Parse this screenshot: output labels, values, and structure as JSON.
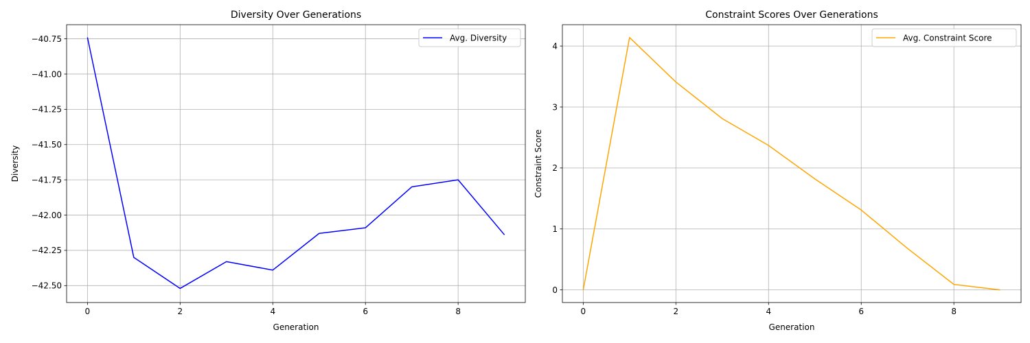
{
  "chart_data": [
    {
      "type": "line",
      "title": "Diversity Over Generations",
      "xlabel": "Generation",
      "ylabel": "Diversity",
      "xlim": [
        -0.45,
        9.45
      ],
      "ylim": [
        -42.62,
        -40.65
      ],
      "xticks": [
        0,
        2,
        4,
        6,
        8
      ],
      "yticks": [
        -42.5,
        -42.25,
        -42.0,
        -41.75,
        -41.5,
        -41.25,
        -41.0,
        -40.75
      ],
      "ytick_labels": [
        "−42.50",
        "−42.25",
        "−42.00",
        "−41.75",
        "−41.50",
        "−41.25",
        "−41.00",
        "−40.75"
      ],
      "grid": true,
      "legend_position": "upper right",
      "x": [
        0,
        1,
        2,
        3,
        4,
        5,
        6,
        7,
        8,
        9
      ],
      "series": [
        {
          "name": "Avg. Diversity",
          "color": "#0000ff",
          "values": [
            -40.74,
            -42.3,
            -42.52,
            -42.33,
            -42.39,
            -42.13,
            -42.09,
            -41.8,
            -41.75,
            -42.14
          ]
        }
      ]
    },
    {
      "type": "line",
      "title": "Constraint Scores Over Generations",
      "xlabel": "Generation",
      "ylabel": "Constraint Score",
      "xlim": [
        -0.45,
        9.45
      ],
      "ylim": [
        -0.207,
        4.35
      ],
      "xticks": [
        0,
        2,
        4,
        6,
        8
      ],
      "yticks": [
        0,
        1,
        2,
        3,
        4
      ],
      "ytick_labels": [
        "0",
        "1",
        "2",
        "3",
        "4"
      ],
      "grid": true,
      "legend_position": "upper right",
      "x": [
        0,
        1,
        2,
        3,
        4,
        5,
        6,
        7,
        8,
        9
      ],
      "series": [
        {
          "name": "Avg. Constraint Score",
          "color": "#ffa500",
          "values": [
            0,
            4.14,
            3.41,
            2.81,
            2.37,
            1.82,
            1.31,
            0.68,
            0.09,
            0.0
          ]
        }
      ]
    }
  ]
}
